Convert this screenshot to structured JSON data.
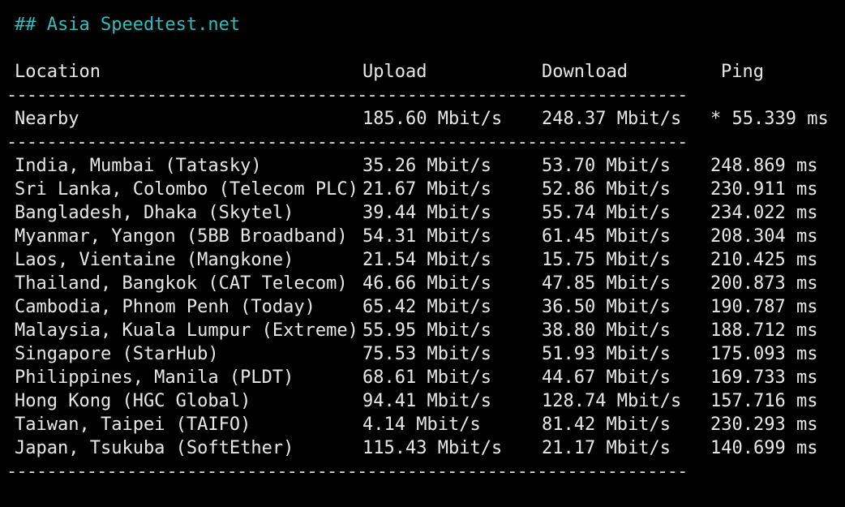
{
  "title": "## Asia Speedtest.net",
  "headers": {
    "location": "Location",
    "upload": "Upload",
    "download": "Download",
    "ping": "Ping"
  },
  "separator": "--------------------------------------------------------------------",
  "nearby": {
    "location": "Nearby",
    "upload": "185.60 Mbit/s",
    "download": "248.37 Mbit/s",
    "ping": "* 55.339 ms"
  },
  "rows": [
    {
      "location": "India, Mumbai (Tatasky)",
      "upload": "35.26 Mbit/s",
      "download": "53.70 Mbit/s",
      "ping": "248.869 ms"
    },
    {
      "location": "Sri Lanka, Colombo (Telecom PLC)",
      "upload": "21.67 Mbit/s",
      "download": "52.86 Mbit/s",
      "ping": "230.911 ms"
    },
    {
      "location": "Bangladesh, Dhaka (Skytel)",
      "upload": "39.44 Mbit/s",
      "download": "55.74 Mbit/s",
      "ping": "234.022 ms"
    },
    {
      "location": "Myanmar, Yangon (5BB Broadband)",
      "upload": "54.31 Mbit/s",
      "download": "61.45 Mbit/s",
      "ping": "208.304 ms"
    },
    {
      "location": "Laos, Vientaine (Mangkone)",
      "upload": "21.54 Mbit/s",
      "download": "15.75 Mbit/s",
      "ping": "210.425 ms"
    },
    {
      "location": "Thailand, Bangkok (CAT Telecom)",
      "upload": "46.66 Mbit/s",
      "download": "47.85 Mbit/s",
      "ping": "200.873 ms"
    },
    {
      "location": "Cambodia, Phnom Penh (Today)",
      "upload": "65.42 Mbit/s",
      "download": "36.50 Mbit/s",
      "ping": "190.787 ms"
    },
    {
      "location": "Malaysia, Kuala Lumpur (Extreme)",
      "upload": "55.95 Mbit/s",
      "download": "38.80 Mbit/s",
      "ping": "188.712 ms"
    },
    {
      "location": "Singapore (StarHub)",
      "upload": "75.53 Mbit/s",
      "download": "51.93 Mbit/s",
      "ping": "175.093 ms"
    },
    {
      "location": "Philippines, Manila (PLDT)",
      "upload": "68.61 Mbit/s",
      "download": "44.67 Mbit/s",
      "ping": "169.733 ms"
    },
    {
      "location": "Hong Kong (HGC Global)",
      "upload": "94.41 Mbit/s",
      "download": "128.74 Mbit/s",
      "ping": "157.716 ms"
    },
    {
      "location": "Taiwan, Taipei (TAIFO)",
      "upload": "4.14 Mbit/s",
      "download": "81.42 Mbit/s",
      "ping": "230.293 ms"
    },
    {
      "location": "Japan, Tsukuba (SoftEther)",
      "upload": "115.43 Mbit/s",
      "download": "21.17 Mbit/s",
      "ping": "140.699 ms"
    }
  ],
  "colors": {
    "background": "#000000",
    "text": "#e8e8e8",
    "title": "#2fbfbf"
  }
}
